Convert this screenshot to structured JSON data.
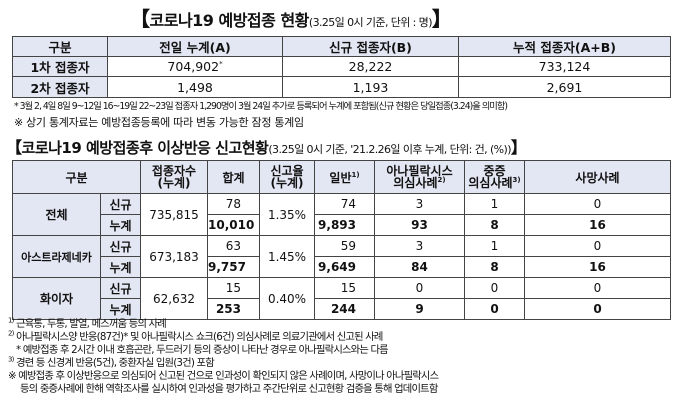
{
  "title1": {
    "open": "【",
    "main": "코로나19 예방접종 현황",
    "sub": "(3.25일 0시 기준, 단위 : 명)",
    "close": "】"
  },
  "table1": {
    "headers": [
      "구분",
      "전일 누계(A)",
      "신규 접종자(B)",
      "누적 접종자(A+B)"
    ],
    "rows": [
      {
        "label": "1차 접종자",
        "a": "704,902",
        "a_mark": "*",
        "b": "28,222",
        "ab": "733,124"
      },
      {
        "label": "2차 접종자",
        "a": "1,498",
        "b": "1,193",
        "ab": "2,691"
      }
    ]
  },
  "notes1": [
    "* 3월 2, 4일 8일 9~12일 16~19일 22~23일 접종자 1,290명이 3월 24일 추가로 등록되어 누계에 포함됨(신규 현황은 당일접종(3.24)을 의미함)",
    "※ 상기 통계자료는 예방접종등록에 따라 변동 가능한 잠정 통계임"
  ],
  "title2": {
    "open": "【",
    "main": "코로나19 예방접종후 이상반응 신고현황",
    "sub": "(3.25일 0시 기준, '21.2.26일 이후 누계, 단위: 건, (%))",
    "close": "】"
  },
  "table2": {
    "headers": {
      "group": "구분",
      "vacc_1": "접종자수",
      "vacc_2": "(누계)",
      "total": "합계",
      "rate_1": "신고율",
      "rate_2": "(누계)",
      "general": "일반",
      "general_sup": "1)",
      "ana_1": "아나필락시스",
      "ana_2": "의심사례",
      "ana_sup": "2)",
      "severe_1": "중증",
      "severe_2": "의심사례",
      "severe_sup": "3)",
      "death": "사망사례"
    },
    "groups": [
      {
        "name": "전체",
        "vacc": "735,815",
        "rate": "1.35%",
        "rows": [
          {
            "type": "신규",
            "total": "78",
            "general": "74",
            "ana": "3",
            "severe": "1",
            "death": "0"
          },
          {
            "type": "누계",
            "total": "10,010",
            "general": "9,893",
            "ana": "93",
            "severe": "8",
            "death": "16"
          }
        ]
      },
      {
        "name": "아스트라제네카",
        "vacc": "673,183",
        "rate": "1.45%",
        "rows": [
          {
            "type": "신규",
            "total": "63",
            "general": "59",
            "ana": "3",
            "severe": "1",
            "death": "0"
          },
          {
            "type": "누계",
            "total": "9,757",
            "general": "9,649",
            "ana": "84",
            "severe": "8",
            "death": "16"
          }
        ]
      },
      {
        "name": "화이자",
        "vacc": "62,632",
        "rate": "0.40%",
        "rows": [
          {
            "type": "신규",
            "total": "15",
            "general": "15",
            "ana": "0",
            "severe": "0",
            "death": "0"
          },
          {
            "type": "누계",
            "total": "253",
            "general": "244",
            "ana": "9",
            "severe": "0",
            "death": "0"
          }
        ]
      }
    ]
  },
  "notes2": {
    "n1_mark": "1)",
    "n1": "근육통, 두통, 발열, 메스꺼움 등의 사례",
    "n2_mark": "2)",
    "n2": "아나필락시스양 반응(87건)* 및 아나필락시스 쇼크(6건) 의심사례로 의료기관에서 신고된 사례",
    "n2_sub": "* 예방접종 후 2시간 이내 호흡곤란, 두드러기 등의 증상이 나타난 경우로 아나필락시스와는 다름",
    "n3_mark": "3)",
    "n3": "경련 등 신경계 반응(5건), 중환자실 입원(3건) 포함",
    "n4a": "※ 예방접종 후 이상반응으로 의심되어 신고된 건으로 인과성이 확인되지 않은 사례이며, 사망이나 아나필락시스",
    "n4b": "등의 중증사례에 한해 역학조사를 실시하여 인과성을 평가하고 주간단위로 신고현황 검증을 통해 업데이트함"
  }
}
